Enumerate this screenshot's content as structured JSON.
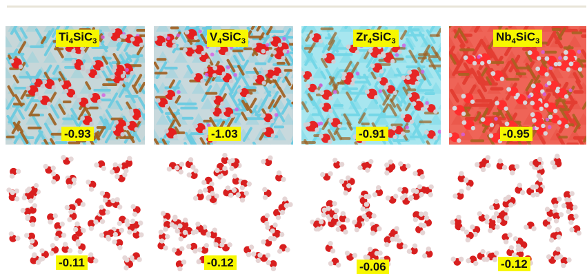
{
  "top_row": [
    {
      "name": "ti4sic3",
      "metal": "Ti",
      "metal_count": "4",
      "middle": "SiC",
      "suffix_count": "3",
      "value": "-0.93",
      "bg_color": "#c7d7d9",
      "main_color": "#6dcbe0",
      "accent_color": "#a0601f",
      "oxygen_color": "#e61f1f",
      "hydrogen_color": "#c8c8cf"
    },
    {
      "name": "v4sic3",
      "metal": "V",
      "metal_count": "4",
      "middle": "SiC",
      "suffix_count": "3",
      "value": "-1.03",
      "bg_color": "#c8d9dd",
      "main_color": "#6acbe2",
      "accent_color": "#a15f1f",
      "oxygen_color": "#e41f1f",
      "hydrogen_color": "#cacad1"
    },
    {
      "name": "zr4sic3",
      "metal": "Zr",
      "metal_count": "4",
      "middle": "SiC",
      "suffix_count": "3",
      "value": "-0.91",
      "bg_color": "#a7e6ef",
      "main_color": "#73d7e7",
      "accent_color": "#9e6222",
      "oxygen_color": "#e62626",
      "hydrogen_color": "#d0d0d6"
    },
    {
      "name": "nb4sic3",
      "metal": "Nb",
      "metal_count": "4",
      "middle": "SiC",
      "suffix_count": "3",
      "value": "-0.95",
      "bg_color": "#ef6457",
      "main_color": "#e33d31",
      "accent_color": "#a86220",
      "oxygen_color": "#ff2e2e",
      "hydrogen_color": "#d8d8de"
    }
  ],
  "bottom_row": [
    {
      "name": "water-ti4sic3",
      "value": "-0.11",
      "oxygen_color": "#d81f1f",
      "hydrogen_color": "#e6d7d7"
    },
    {
      "name": "water-v4sic3",
      "value": "-0.12",
      "oxygen_color": "#d81f1f",
      "hydrogen_color": "#e5d4d4"
    },
    {
      "name": "water-zr4sic3",
      "value": "-0.06",
      "oxygen_color": "#d81f1f",
      "hydrogen_color": "#e5d4d4"
    },
    {
      "name": "water-nb4sic3",
      "value": "-0.12",
      "oxygen_color": "#d81f1f",
      "hydrogen_color": "#e5d4d4"
    }
  ],
  "colors": {
    "rule": "#e8e4d7",
    "label_bg": "#f7f700"
  }
}
